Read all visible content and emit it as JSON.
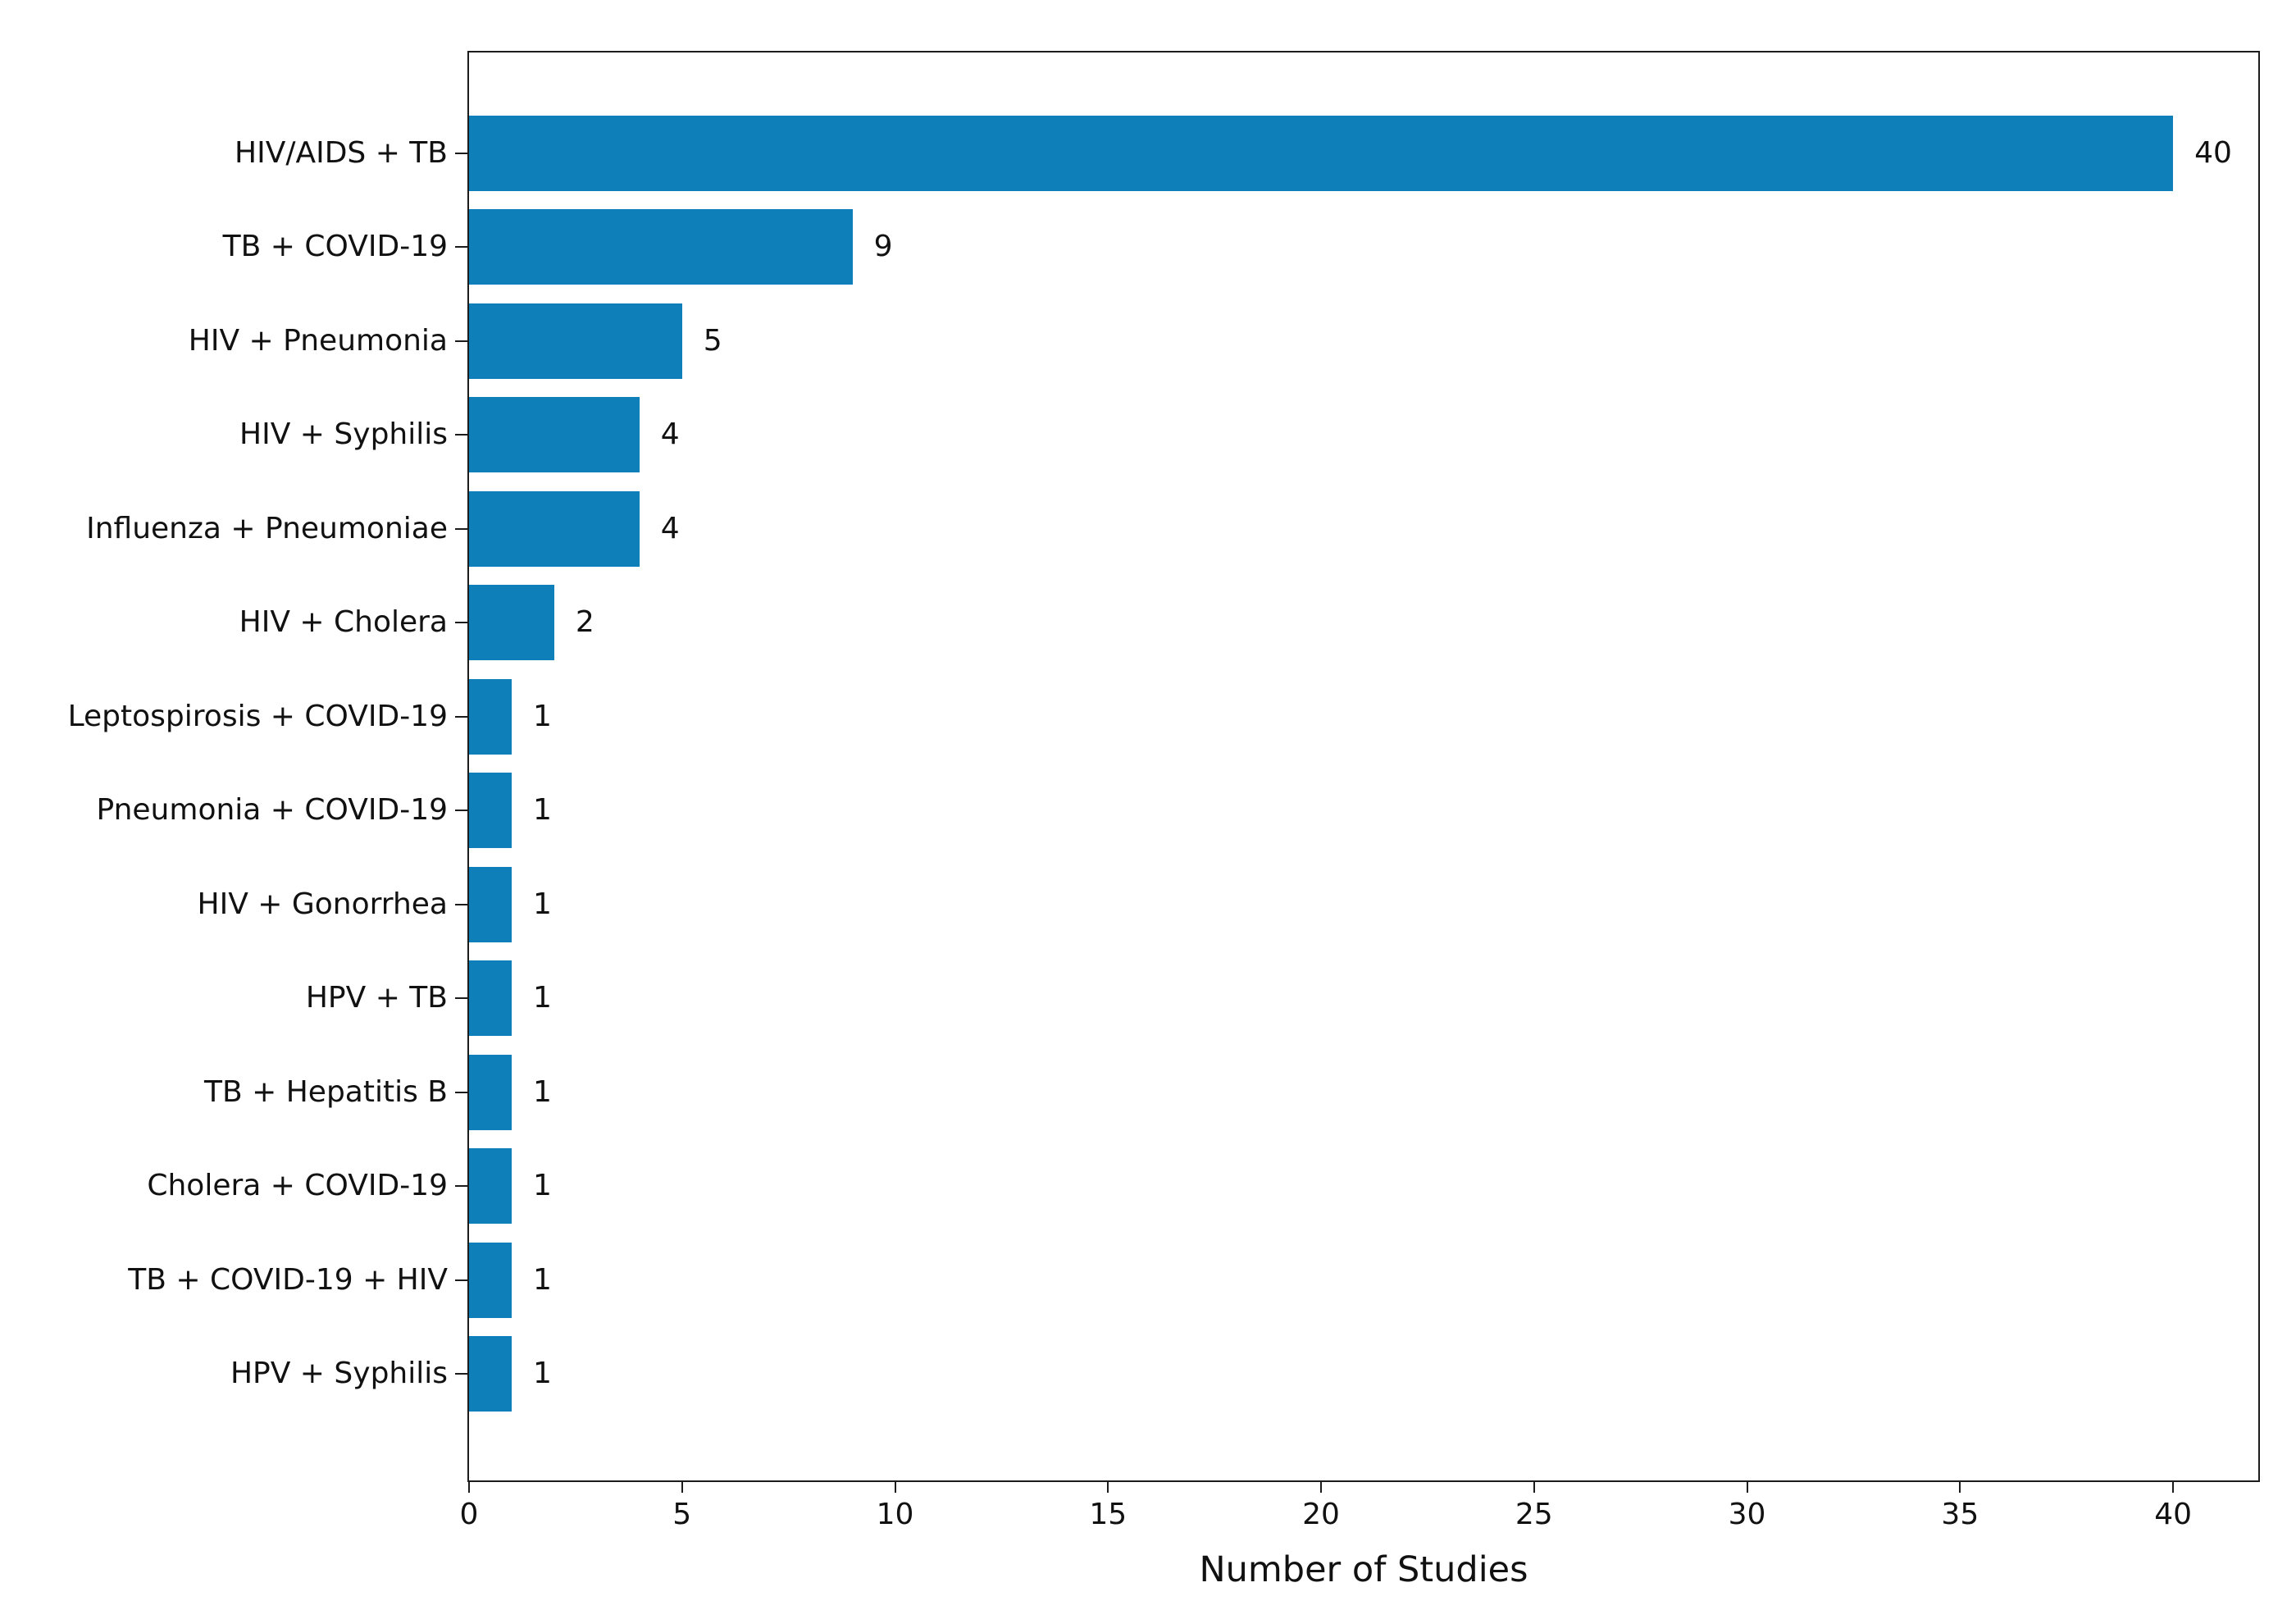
{
  "chart_data": {
    "type": "bar",
    "orientation": "horizontal",
    "title": "",
    "xlabel": "Number of Studies",
    "ylabel": "",
    "categories": [
      "HIV/AIDS + TB",
      "TB + COVID-19",
      "HIV + Pneumonia",
      "HIV + Syphilis",
      "Influenza + Pneumoniae",
      "HIV + Cholera",
      "Leptospirosis + COVID-19",
      "Pneumonia + COVID-19",
      "HIV + Gonorrhea",
      "HPV + TB",
      "TB + Hepatitis B",
      "Cholera + COVID-19",
      "TB + COVID-19 + HIV",
      "HPV + Syphilis"
    ],
    "values": [
      40,
      9,
      5,
      4,
      4,
      2,
      1,
      1,
      1,
      1,
      1,
      1,
      1,
      1
    ],
    "value_labels": [
      "40",
      "9",
      "5",
      "4",
      "4",
      "2",
      "1",
      "1",
      "1",
      "1",
      "1",
      "1",
      "1",
      "1"
    ],
    "xlim": [
      0,
      42
    ],
    "xticks": [
      0,
      5,
      10,
      15,
      20,
      25,
      30,
      35,
      40
    ],
    "xtick_labels": [
      "0",
      "5",
      "10",
      "15",
      "20",
      "25",
      "30",
      "35",
      "40"
    ],
    "grid": false,
    "legend": null,
    "bar_color": "#0e7fb8",
    "spine_color": "#1c1c1c",
    "text_color": "#111111"
  }
}
